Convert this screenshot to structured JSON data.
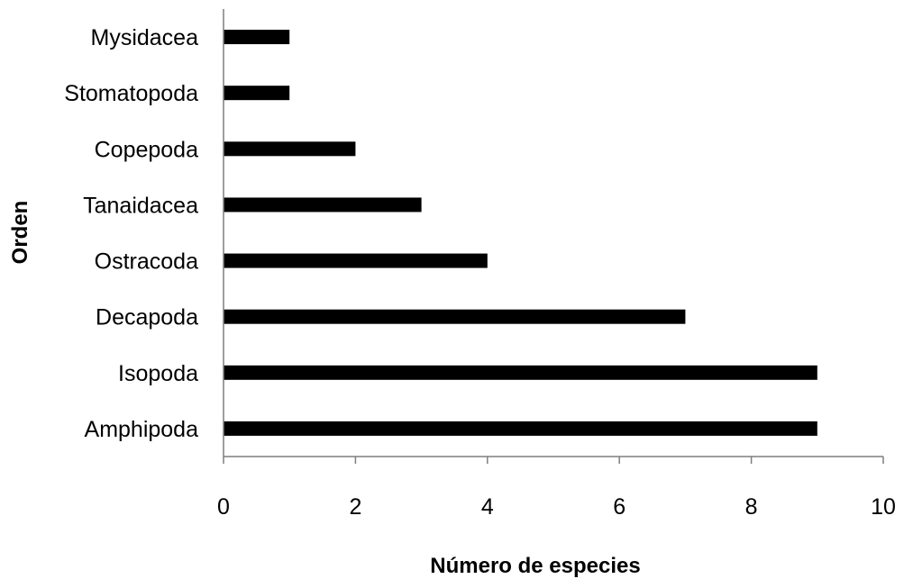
{
  "chart_data": {
    "type": "bar",
    "orientation": "horizontal",
    "title": "",
    "xlabel": "Número de especies",
    "ylabel": "Orden",
    "categories": [
      "Mysidacea",
      "Stomatopoda",
      "Copepoda",
      "Tanaidacea",
      "Ostracoda",
      "Decapoda",
      "Isopoda",
      "Amphipoda"
    ],
    "values": [
      1,
      1,
      2,
      3,
      4,
      7,
      9,
      9
    ],
    "xlim": [
      0,
      10
    ],
    "xticks": [
      "0",
      "2",
      "4",
      "6",
      "8",
      "10"
    ],
    "grid": false,
    "legend": "none",
    "bar_color": "#000000",
    "axis_color": "#7f7f7f"
  }
}
